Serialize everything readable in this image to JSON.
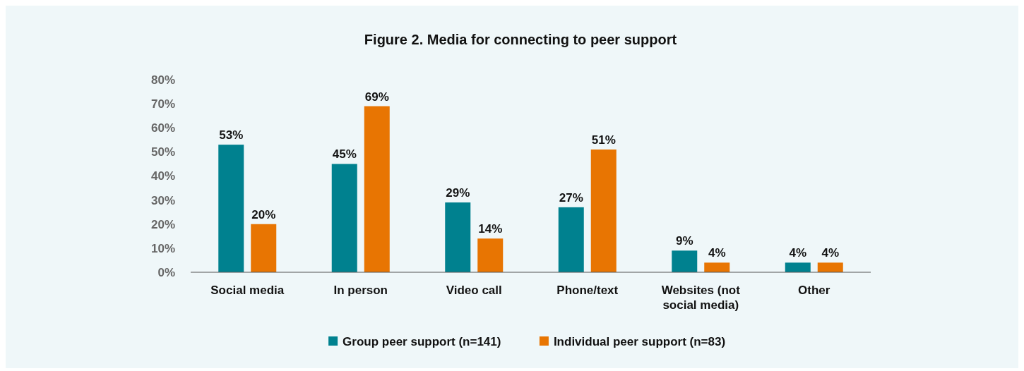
{
  "chart_data": {
    "type": "bar",
    "title": "Figure 2. Media for connecting to peer support",
    "categories": [
      "Social media",
      "In person",
      "Video call",
      "Phone/text",
      "Websites (not social media)",
      "Other"
    ],
    "series": [
      {
        "name": "Group peer support (n=141)",
        "color": "#00818f",
        "values": [
          53,
          45,
          29,
          27,
          9,
          4
        ],
        "value_labels": [
          "53%",
          "45%",
          "29%",
          "27%",
          "9%",
          "4%"
        ]
      },
      {
        "name": "Individual peer support (n=83)",
        "color": "#e87502",
        "values": [
          20,
          69,
          14,
          51,
          4,
          4
        ],
        "value_labels": [
          "20%",
          "69%",
          "14%",
          "51%",
          "4%",
          "4%"
        ]
      }
    ],
    "ylim": [
      0,
      80
    ],
    "yticks": [
      {
        "value": 0,
        "label": "0%"
      },
      {
        "value": 10,
        "label": "10%"
      },
      {
        "value": 20,
        "label": "20%"
      },
      {
        "value": 30,
        "label": "30%"
      },
      {
        "value": 40,
        "label": "40%"
      },
      {
        "value": 50,
        "label": "50%"
      },
      {
        "value": 60,
        "label": "60%"
      },
      {
        "value": 70,
        "label": "70%"
      },
      {
        "value": 80,
        "label": "80%"
      }
    ],
    "grid": false,
    "legend": "bottom"
  }
}
